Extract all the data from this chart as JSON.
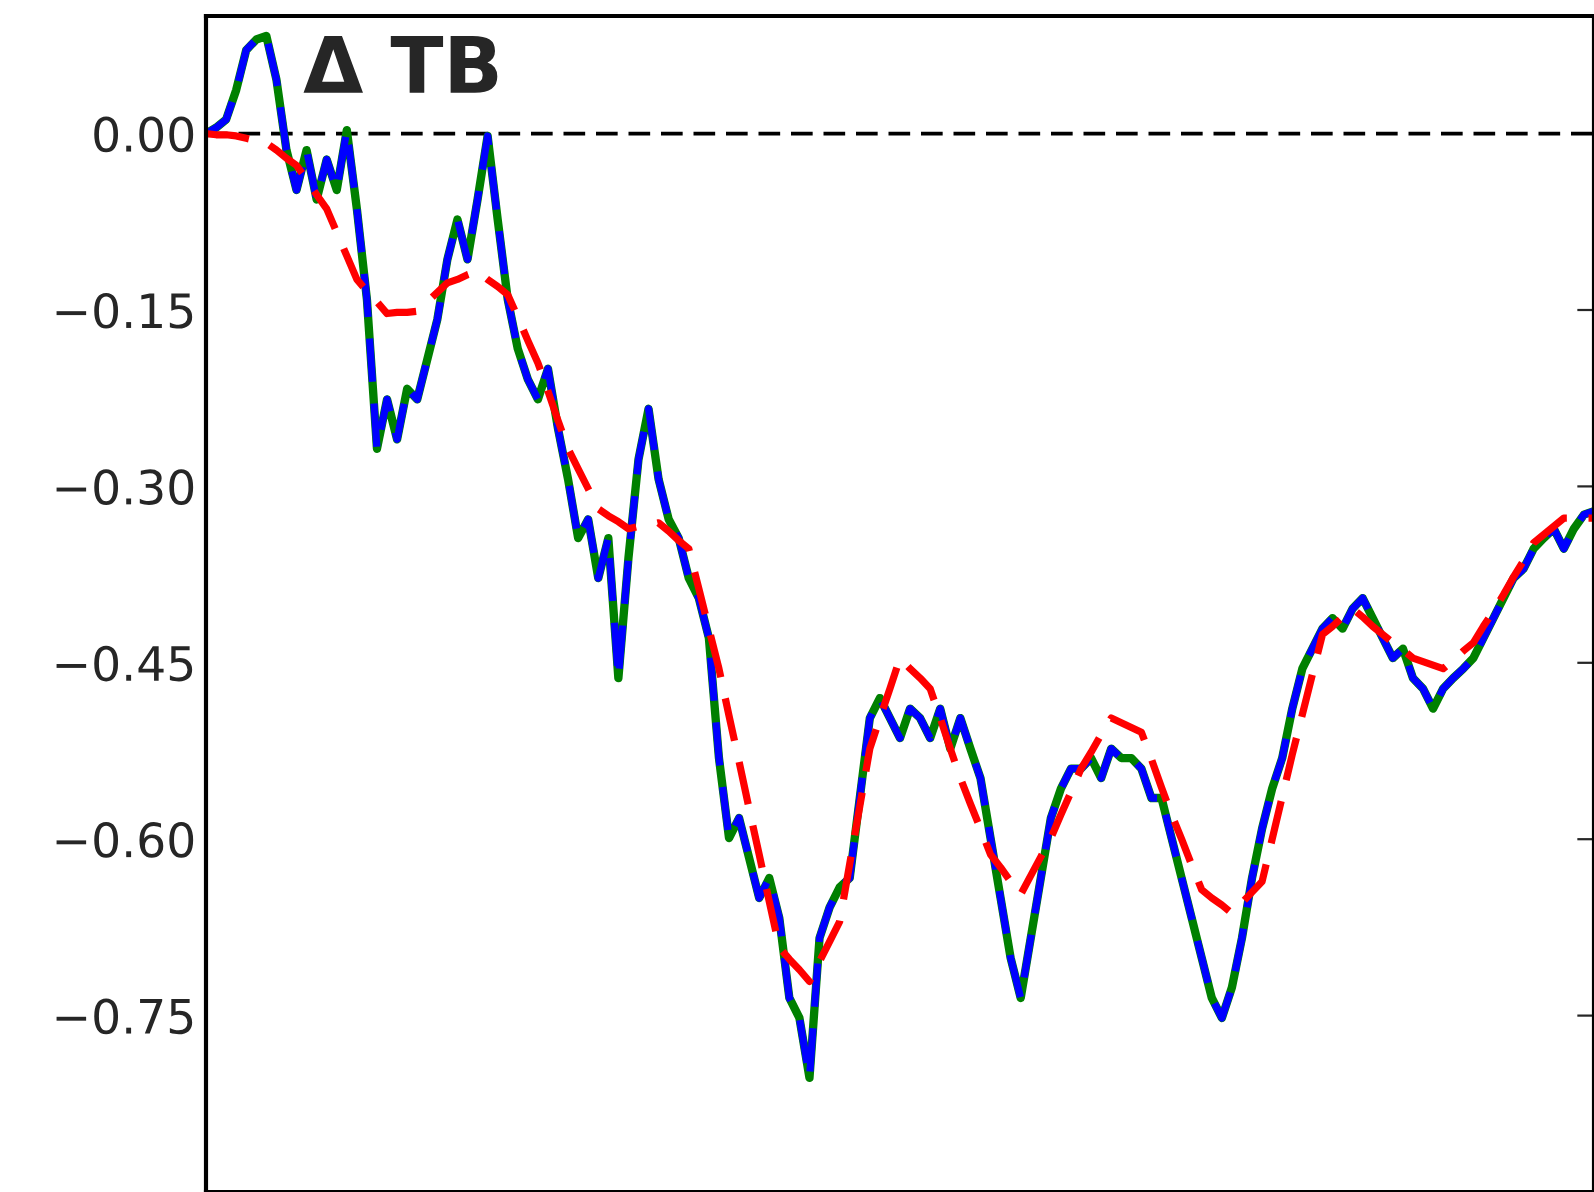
{
  "chart_data": {
    "type": "line",
    "title": "Δ TB",
    "ylim": [
      -0.9,
      0.1
    ],
    "yticks": [
      {
        "value": 0.0,
        "label": "0.00"
      },
      {
        "value": -0.15,
        "label": "−0.15"
      },
      {
        "value": -0.3,
        "label": "−0.30"
      },
      {
        "value": -0.45,
        "label": "−0.45"
      },
      {
        "value": -0.6,
        "label": "−0.60"
      },
      {
        "value": -0.75,
        "label": "−0.75"
      }
    ],
    "tick_labels": "y",
    "grid": false,
    "marker": "none",
    "ref_lines": [
      {
        "axis": "y",
        "value": 0,
        "label": null,
        "color": "#000000",
        "line_style": "dashed"
      }
    ],
    "categories": [
      null,
      null,
      null,
      null,
      null,
      null,
      null,
      null,
      null,
      null,
      null,
      null,
      null,
      null,
      null,
      null,
      null,
      null,
      null,
      null,
      null,
      null,
      null,
      null,
      null,
      null,
      null,
      null,
      null,
      null,
      null,
      null,
      null,
      null,
      null,
      null,
      null,
      null,
      null,
      null,
      null,
      null,
      null,
      null,
      null,
      null,
      null,
      null,
      null,
      null,
      null,
      null,
      null,
      null,
      null,
      null,
      null,
      null,
      null,
      null,
      null,
      null,
      null,
      null,
      null,
      null,
      null,
      null,
      null,
      null,
      null,
      null,
      null,
      null,
      null,
      null,
      null,
      null,
      null,
      null,
      null,
      null,
      null,
      null,
      null,
      null,
      null,
      null,
      null,
      null,
      null,
      null,
      null,
      null,
      null,
      null,
      null,
      null,
      null,
      null,
      null,
      null,
      null,
      null,
      null,
      null,
      null,
      null,
      null,
      null,
      null,
      null,
      null,
      null,
      null,
      null,
      null,
      null,
      null,
      null,
      null,
      null,
      null,
      null,
      null,
      null,
      null,
      null,
      null,
      null,
      null,
      null,
      null,
      null,
      null,
      null,
      null,
      null,
      null
    ],
    "series": [
      {
        "color": "#008000",
        "line_style": "solid",
        "values": [
          0,
          0.005,
          0.012,
          0.037,
          0.071,
          0.08,
          0.083,
          0.046,
          -0.014,
          -0.048,
          -0.014,
          -0.056,
          -0.022,
          -0.048,
          0.003,
          -0.064,
          -0.141,
          -0.268,
          -0.226,
          -0.26,
          -0.217,
          -0.226,
          -0.192,
          -0.158,
          -0.107,
          -0.073,
          -0.107,
          -0.056,
          -0.002,
          -0.073,
          -0.141,
          -0.183,
          -0.209,
          -0.226,
          -0.2,
          -0.251,
          -0.294,
          -0.344,
          -0.328,
          -0.378,
          -0.344,
          -0.463,
          -0.361,
          -0.277,
          -0.234,
          -0.294,
          -0.328,
          -0.344,
          -0.378,
          -0.395,
          -0.429,
          -0.531,
          -0.599,
          -0.582,
          -0.616,
          -0.65,
          -0.633,
          -0.667,
          -0.735,
          -0.752,
          -0.803,
          -0.684,
          -0.658,
          -0.641,
          -0.633,
          -0.565,
          -0.497,
          -0.48,
          -0.497,
          -0.514,
          -0.489,
          -0.497,
          -0.514,
          -0.489,
          -0.523,
          -0.497,
          -0.523,
          -0.548,
          -0.599,
          -0.65,
          -0.701,
          -0.735,
          -0.684,
          -0.633,
          -0.582,
          -0.557,
          -0.54,
          -0.54,
          -0.531,
          -0.548,
          -0.523,
          -0.531,
          -0.531,
          -0.54,
          -0.565,
          -0.565,
          -0.599,
          -0.633,
          -0.667,
          -0.701,
          -0.735,
          -0.752,
          -0.726,
          -0.684,
          -0.633,
          -0.591,
          -0.557,
          -0.531,
          -0.489,
          -0.455,
          -0.438,
          -0.421,
          -0.412,
          -0.421,
          -0.404,
          -0.395,
          -0.412,
          -0.429,
          -0.446,
          -0.438,
          -0.463,
          -0.472,
          -0.489,
          -0.472,
          -0.463,
          -0.455,
          -0.446,
          -0.429,
          -0.412,
          -0.395,
          -0.378,
          -0.37,
          -0.353,
          -0.344,
          -0.336,
          -0.353,
          -0.336,
          -0.324,
          -0.321
        ]
      },
      {
        "color": "#0000ff",
        "line_style": "dashed",
        "values": [
          0,
          0.005,
          0.012,
          0.037,
          0.071,
          0.08,
          0.083,
          0.046,
          -0.014,
          -0.048,
          -0.014,
          -0.056,
          -0.022,
          -0.048,
          0.003,
          -0.064,
          -0.141,
          -0.268,
          -0.226,
          -0.26,
          -0.217,
          -0.226,
          -0.192,
          -0.158,
          -0.107,
          -0.073,
          -0.107,
          -0.056,
          -0.002,
          -0.073,
          -0.141,
          -0.183,
          -0.209,
          -0.226,
          -0.2,
          -0.251,
          -0.294,
          -0.344,
          -0.328,
          -0.378,
          -0.344,
          -0.463,
          -0.361,
          -0.277,
          -0.234,
          -0.294,
          -0.328,
          -0.344,
          -0.378,
          -0.395,
          -0.429,
          -0.531,
          -0.599,
          -0.582,
          -0.616,
          -0.65,
          -0.633,
          -0.667,
          -0.735,
          -0.752,
          -0.803,
          -0.684,
          -0.658,
          -0.641,
          -0.633,
          -0.565,
          -0.497,
          -0.48,
          -0.497,
          -0.514,
          -0.489,
          -0.497,
          -0.514,
          -0.489,
          -0.523,
          -0.497,
          -0.523,
          -0.548,
          -0.599,
          -0.65,
          -0.701,
          -0.735,
          -0.684,
          -0.633,
          -0.582,
          -0.557,
          -0.54,
          -0.54,
          -0.531,
          -0.548,
          -0.523,
          -0.531,
          -0.531,
          -0.54,
          -0.565,
          -0.565,
          -0.599,
          -0.633,
          -0.667,
          -0.701,
          -0.735,
          -0.752,
          -0.726,
          -0.684,
          -0.633,
          -0.591,
          -0.557,
          -0.531,
          -0.489,
          -0.455,
          -0.438,
          -0.421,
          -0.412,
          -0.421,
          -0.404,
          -0.395,
          -0.412,
          -0.429,
          -0.446,
          -0.438,
          -0.463,
          -0.472,
          -0.489,
          -0.472,
          -0.463,
          -0.455,
          -0.446,
          -0.429,
          -0.412,
          -0.395,
          -0.378,
          -0.37,
          -0.353,
          -0.344,
          -0.336,
          -0.353,
          -0.336,
          -0.324,
          -0.321
        ]
      },
      {
        "color": "#ff0000",
        "line_style": "dashed",
        "values": [
          0,
          -0.001,
          -0.001,
          -0.002,
          -0.004,
          -0.006,
          -0.008,
          -0.014,
          -0.021,
          -0.027,
          -0.039,
          -0.052,
          -0.064,
          -0.084,
          -0.104,
          -0.124,
          -0.134,
          -0.143,
          -0.153,
          -0.152,
          -0.152,
          -0.151,
          -0.143,
          -0.135,
          -0.127,
          -0.124,
          -0.12,
          -0.117,
          -0.124,
          -0.13,
          -0.137,
          -0.156,
          -0.176,
          -0.195,
          -0.219,
          -0.244,
          -0.268,
          -0.285,
          -0.302,
          -0.319,
          -0.325,
          -0.33,
          -0.336,
          -0.334,
          -0.333,
          -0.331,
          -0.338,
          -0.346,
          -0.353,
          -0.387,
          -0.421,
          -0.455,
          -0.495,
          -0.534,
          -0.574,
          -0.613,
          -0.653,
          -0.692,
          -0.702,
          -0.711,
          -0.721,
          -0.704,
          -0.687,
          -0.67,
          -0.621,
          -0.572,
          -0.523,
          -0.497,
          -0.472,
          -0.446,
          -0.455,
          -0.463,
          -0.472,
          -0.497,
          -0.523,
          -0.548,
          -0.57,
          -0.591,
          -0.613,
          -0.624,
          -0.636,
          -0.647,
          -0.631,
          -0.615,
          -0.599,
          -0.579,
          -0.56,
          -0.54,
          -0.526,
          -0.511,
          -0.497,
          -0.501,
          -0.505,
          -0.509,
          -0.532,
          -0.556,
          -0.579,
          -0.6,
          -0.622,
          -0.643,
          -0.65,
          -0.656,
          -0.663,
          -0.654,
          -0.645,
          -0.636,
          -0.6,
          -0.564,
          -0.528,
          -0.494,
          -0.46,
          -0.426,
          -0.419,
          -0.411,
          -0.404,
          -0.411,
          -0.419,
          -0.426,
          -0.433,
          -0.439,
          -0.446,
          -0.449,
          -0.452,
          -0.455,
          -0.448,
          -0.44,
          -0.433,
          -0.419,
          -0.406,
          -0.392,
          -0.377,
          -0.363,
          -0.348,
          -0.341,
          -0.334,
          -0.327,
          -0.327,
          -0.327,
          -0.327
        ]
      }
    ]
  }
}
